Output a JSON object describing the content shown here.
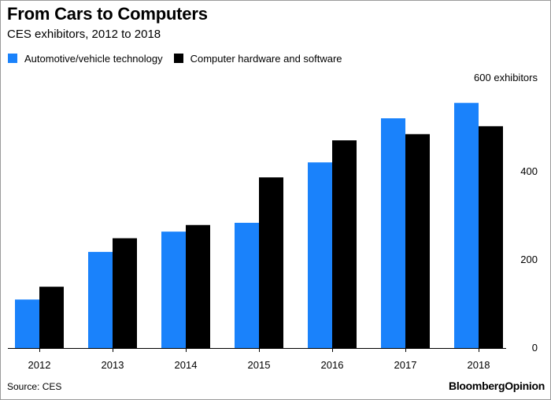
{
  "title": "From Cars to Computers",
  "subtitle": "CES exhibitors, 2012 to 2018",
  "source": "Source: CES",
  "brand": {
    "part1": "Bloomberg",
    "part2": "Opinion"
  },
  "colors": {
    "automotive": "#1a82fb",
    "computer": "#000000",
    "axis": "#000000",
    "grid": "#e6e6e6"
  },
  "chart_data": {
    "type": "bar",
    "categories": [
      "2012",
      "2013",
      "2014",
      "2015",
      "2016",
      "2017",
      "2018"
    ],
    "series": [
      {
        "name": "Automotive/vehicle technology",
        "values": [
          110,
          218,
          264,
          284,
          421,
          521,
          556
        ]
      },
      {
        "name": "Computer hardware and software",
        "values": [
          139,
          249,
          279,
          387,
          471,
          485,
          503
        ]
      }
    ],
    "y_ticks": [
      {
        "value": 0,
        "label": "0"
      },
      {
        "value": 200,
        "label": "200"
      },
      {
        "value": 400,
        "label": "400"
      },
      {
        "value": 600,
        "label": "600 exhibitors"
      }
    ],
    "ylim": [
      0,
      600
    ],
    "grid": false,
    "legend": "top-left"
  }
}
